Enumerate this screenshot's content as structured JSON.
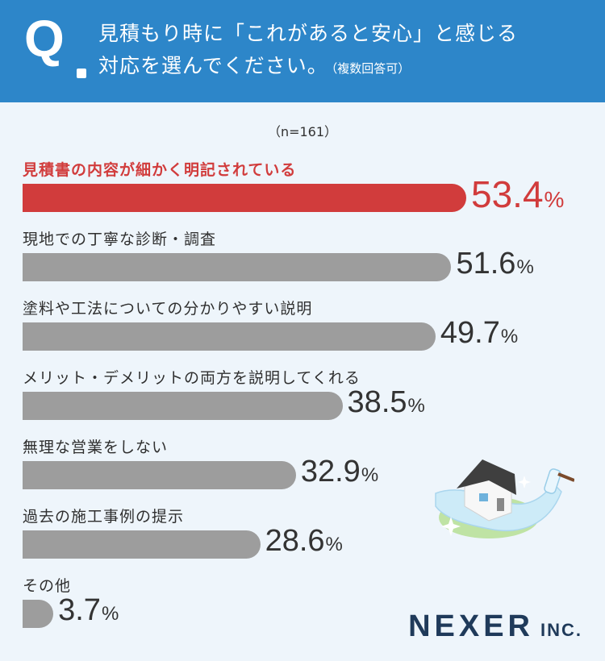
{
  "question": {
    "mark": "Q",
    "line1": "見積もり時に「これがあると安心」と感じる",
    "line2": "対応を選んでください。",
    "note": "（複数回答可）"
  },
  "sample_size": "（n=161）",
  "chart_data": {
    "type": "bar",
    "orientation": "horizontal",
    "categories": [
      "見積書の内容が細かく明記されている",
      "現地での丁寧な診断・調査",
      "塗料や工法についての分かりやすい説明",
      "メリット・デメリットの両方を説明してくれる",
      "無理な営業をしない",
      "過去の施工事例の提示",
      "その他"
    ],
    "values": [
      53.4,
      51.6,
      49.7,
      38.5,
      32.9,
      28.6,
      3.7
    ],
    "value_labels": [
      "53.4",
      "51.6",
      "49.7",
      "38.5",
      "32.9",
      "28.6",
      "3.7"
    ],
    "unit": "%",
    "highlight_index": 0,
    "colors": {
      "highlight": "#d13c3c",
      "default": "#9d9d9d"
    }
  },
  "logo": {
    "main": "NEXER",
    "sub": "INC."
  },
  "colors": {
    "header_bg": "#2d86c9",
    "page_bg": "#eef5fb",
    "logo": "#1f3a5a"
  },
  "icons": {
    "illustration": "house-painting-illustration"
  }
}
